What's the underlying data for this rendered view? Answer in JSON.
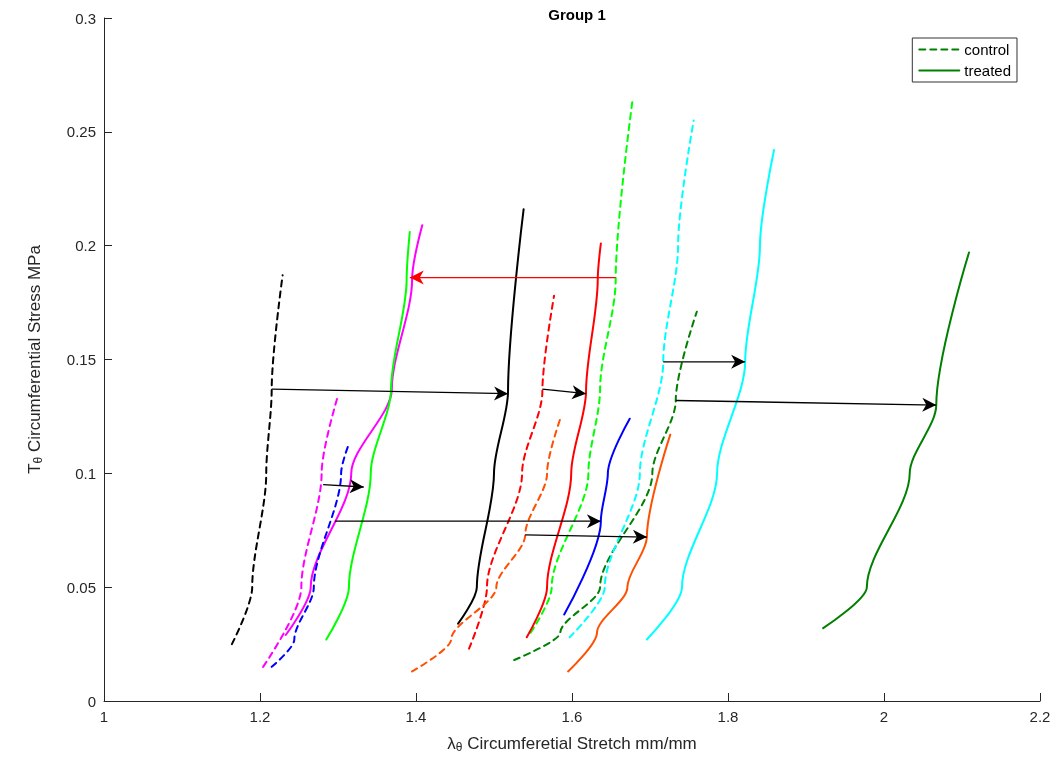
{
  "chart_data": {
    "type": "line",
    "title": "Group 1",
    "xlabel": "λ$_{θ}$ Circumferetial Stretch mm/mm",
    "ylabel": "T$_{θ}$ Circumferential Stress MPa",
    "xlim": [
      1,
      2.2
    ],
    "xticks": [
      1,
      1.2,
      1.4,
      1.6,
      1.8,
      2,
      2.2
    ],
    "ylim": [
      0,
      0.3
    ],
    "yticks": [
      0,
      0.05,
      0.1,
      0.15,
      0.2,
      0.25,
      0.3
    ],
    "grid": false,
    "legend": "top right",
    "series": [
      {
        "name": "control",
        "color": "#008000",
        "line_style": "dashed",
        "x": [
          1.526,
          1.585,
          1.636,
          1.703,
          1.733,
          1.76
        ],
        "values": [
          0.018,
          0.03,
          0.05,
          0.1,
          0.132,
          0.171
        ]
      },
      {
        "name": "treated",
        "color": "#008000",
        "line_style": "solid",
        "x": [
          1.922,
          1.978,
          2.033,
          2.067,
          2.109
        ],
        "values": [
          0.032,
          0.05,
          0.1,
          0.13,
          0.197
        ]
      },
      {
        "color": "#000000",
        "line_style": "dashed",
        "x": [
          1.164,
          1.19,
          1.208,
          1.215,
          1.229
        ],
        "values": [
          0.025,
          0.05,
          0.1,
          0.137,
          0.187
        ]
      },
      {
        "color": "#000000",
        "line_style": "solid",
        "x": [
          1.454,
          1.478,
          1.5,
          1.518,
          1.538
        ],
        "values": [
          0.034,
          0.05,
          0.1,
          0.136,
          0.216
        ]
      },
      {
        "color": "#ff00ff",
        "line_style": "dashed",
        "x": [
          1.204,
          1.253,
          1.279,
          1.299
        ],
        "values": [
          0.015,
          0.05,
          0.1,
          0.133
        ]
      },
      {
        "color": "#ff00ff",
        "line_style": "solid",
        "x": [
          1.233,
          1.265,
          1.317,
          1.369,
          1.395,
          1.408
        ],
        "values": [
          0.029,
          0.05,
          0.1,
          0.137,
          0.185,
          0.209
        ]
      },
      {
        "color": "#0000ff",
        "line_style": "dashed",
        "x": [
          1.215,
          1.244,
          1.269,
          1.304,
          1.314
        ],
        "values": [
          0.015,
          0.027,
          0.05,
          0.1,
          0.113
        ]
      },
      {
        "color": "#0000ff",
        "line_style": "solid",
        "x": [
          1.59,
          1.637,
          1.646,
          1.674
        ],
        "values": [
          0.038,
          0.079,
          0.1,
          0.124
        ]
      },
      {
        "color": "#00ff00",
        "line_style": "dashed",
        "x": [
          1.547,
          1.574,
          1.621,
          1.636,
          1.656,
          1.678
        ],
        "values": [
          0.03,
          0.05,
          0.1,
          0.137,
          0.185,
          0.265
        ]
      },
      {
        "color": "#00ff00",
        "line_style": "solid",
        "x": [
          1.285,
          1.314,
          1.342,
          1.368,
          1.388,
          1.392
        ],
        "values": [
          0.027,
          0.05,
          0.1,
          0.137,
          0.185,
          0.206
        ]
      },
      {
        "color": "#ff0000",
        "line_style": "dashed",
        "x": [
          1.468,
          1.491,
          1.536,
          1.562,
          1.577
        ],
        "values": [
          0.023,
          0.05,
          0.1,
          0.136,
          0.178
        ]
      },
      {
        "color": "#ff0000",
        "line_style": "solid",
        "x": [
          1.542,
          1.568,
          1.599,
          1.618,
          1.633,
          1.637
        ],
        "values": [
          0.028,
          0.05,
          0.1,
          0.136,
          0.185,
          0.201
        ]
      },
      {
        "color": "#ff4f00",
        "line_style": "dashed",
        "x": [
          1.395,
          1.445,
          1.503,
          1.54,
          1.568,
          1.586
        ],
        "values": [
          0.013,
          0.027,
          0.05,
          0.073,
          0.1,
          0.125
        ]
      },
      {
        "color": "#ff4f00",
        "line_style": "solid",
        "x": [
          1.595,
          1.632,
          1.671,
          1.696,
          1.726
        ],
        "values": [
          0.013,
          0.03,
          0.05,
          0.072,
          0.117
        ]
      },
      {
        "color": "#00ffff",
        "line_style": "dashed",
        "x": [
          1.597,
          1.642,
          1.687,
          1.717,
          1.736,
          1.756
        ],
        "values": [
          0.028,
          0.05,
          0.1,
          0.149,
          0.2,
          0.255
        ]
      },
      {
        "color": "#00ffff",
        "line_style": "solid",
        "x": [
          1.696,
          1.741,
          1.786,
          1.822,
          1.841,
          1.859
        ],
        "values": [
          0.027,
          0.05,
          0.1,
          0.149,
          0.2,
          0.242
        ]
      }
    ]
  }
}
